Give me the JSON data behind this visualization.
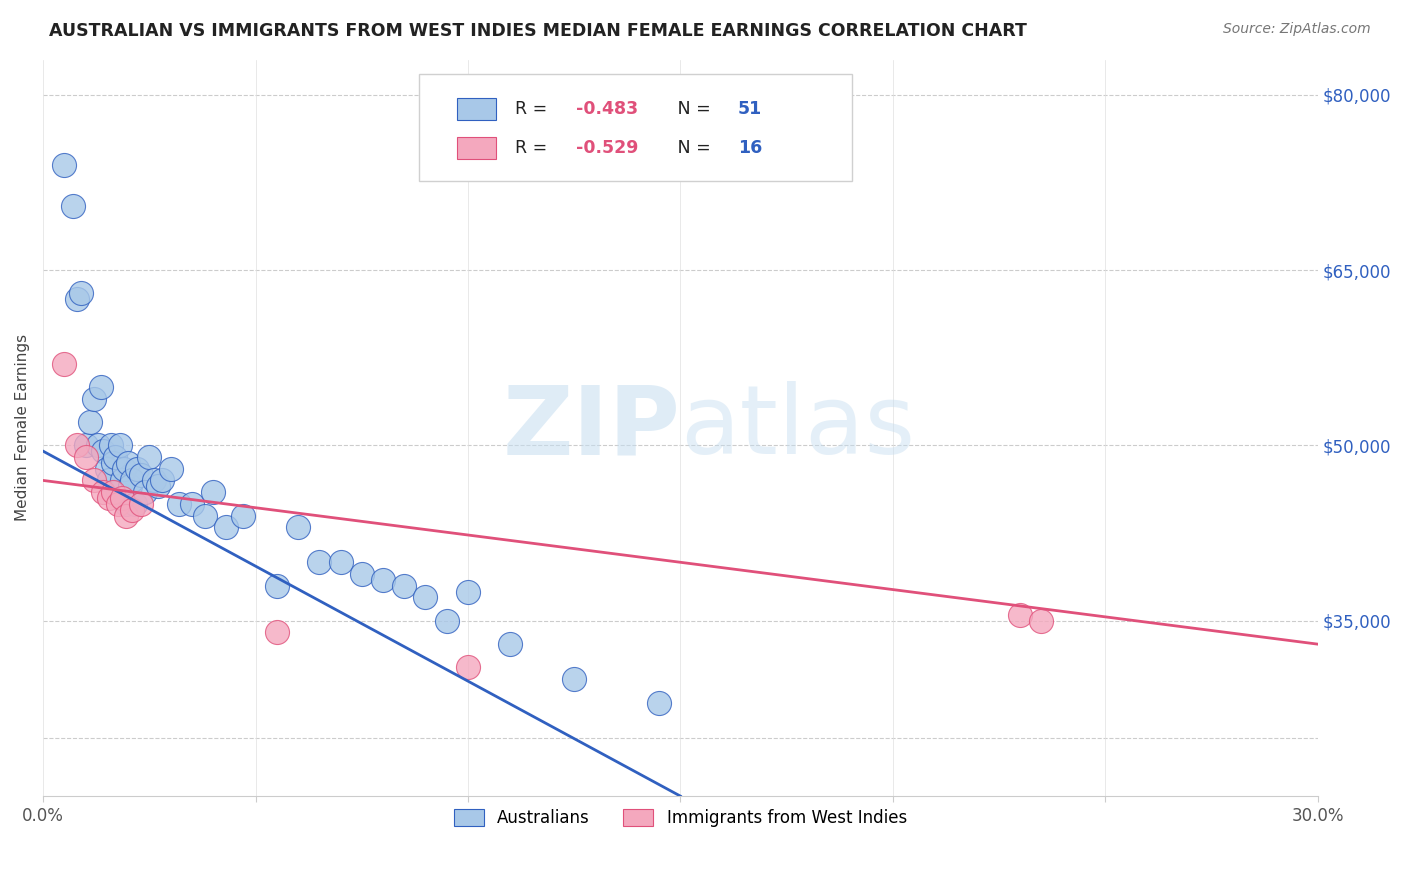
{
  "title": "AUSTRALIAN VS IMMIGRANTS FROM WEST INDIES MEDIAN FEMALE EARNINGS CORRELATION CHART",
  "source": "Source: ZipAtlas.com",
  "ylabel": "Median Female Earnings",
  "yticks": [
    25000,
    35000,
    50000,
    65000,
    80000
  ],
  "ytick_labels": [
    "",
    "$35,000",
    "$50,000",
    "$65,000",
    "$80,000"
  ],
  "xmin": 0.0,
  "xmax": 30.0,
  "ymin": 20000,
  "ymax": 83000,
  "r_australian": -0.483,
  "n_australian": 51,
  "r_westindies": -0.529,
  "n_westindies": 16,
  "color_australian": "#a8c8e8",
  "color_westindies": "#f4a8be",
  "color_line_australian": "#3060c0",
  "color_line_westindies": "#e0507a",
  "color_axis_labels": "#3060c0",
  "color_title": "#222222",
  "watermark_zip": "ZIP",
  "watermark_atlas": "atlas",
  "legend_label_australian": "Australians",
  "legend_label_westindies": "Immigrants from West Indies",
  "aus_x": [
    0.5,
    0.7,
    0.8,
    0.9,
    1.0,
    1.1,
    1.2,
    1.3,
    1.35,
    1.4,
    1.5,
    1.55,
    1.6,
    1.65,
    1.7,
    1.75,
    1.8,
    1.85,
    1.9,
    1.95,
    2.0,
    2.05,
    2.1,
    2.15,
    2.2,
    2.3,
    2.4,
    2.5,
    2.6,
    2.7,
    2.8,
    3.0,
    3.2,
    3.5,
    3.8,
    4.0,
    4.3,
    4.7,
    5.5,
    6.0,
    6.5,
    7.0,
    7.5,
    8.0,
    8.5,
    9.0,
    9.5,
    10.0,
    11.0,
    12.5,
    14.5
  ],
  "aus_y": [
    74000,
    70500,
    62500,
    63000,
    50000,
    52000,
    54000,
    50000,
    55000,
    49500,
    48000,
    47000,
    50000,
    48500,
    49000,
    46000,
    50000,
    47000,
    48000,
    45000,
    48500,
    46500,
    47000,
    45000,
    48000,
    47500,
    46000,
    49000,
    47000,
    46500,
    47000,
    48000,
    45000,
    45000,
    44000,
    46000,
    43000,
    44000,
    38000,
    43000,
    40000,
    40000,
    39000,
    38500,
    38000,
    37000,
    35000,
    37500,
    33000,
    30000,
    28000
  ],
  "wi_x": [
    0.5,
    0.8,
    1.0,
    1.2,
    1.4,
    1.55,
    1.65,
    1.75,
    1.85,
    1.95,
    2.1,
    2.3,
    5.5,
    10.0,
    23.0,
    23.5
  ],
  "wi_y": [
    57000,
    50000,
    49000,
    47000,
    46000,
    45500,
    46000,
    45000,
    45500,
    44000,
    44500,
    45000,
    34000,
    31000,
    35500,
    35000
  ],
  "blue_line_x0": 0.0,
  "blue_line_y0": 49500,
  "blue_line_x1": 15.0,
  "blue_line_y1": 20000,
  "pink_line_x0": 0.0,
  "pink_line_y0": 47000,
  "pink_line_x1": 30.0,
  "pink_line_y1": 33000
}
